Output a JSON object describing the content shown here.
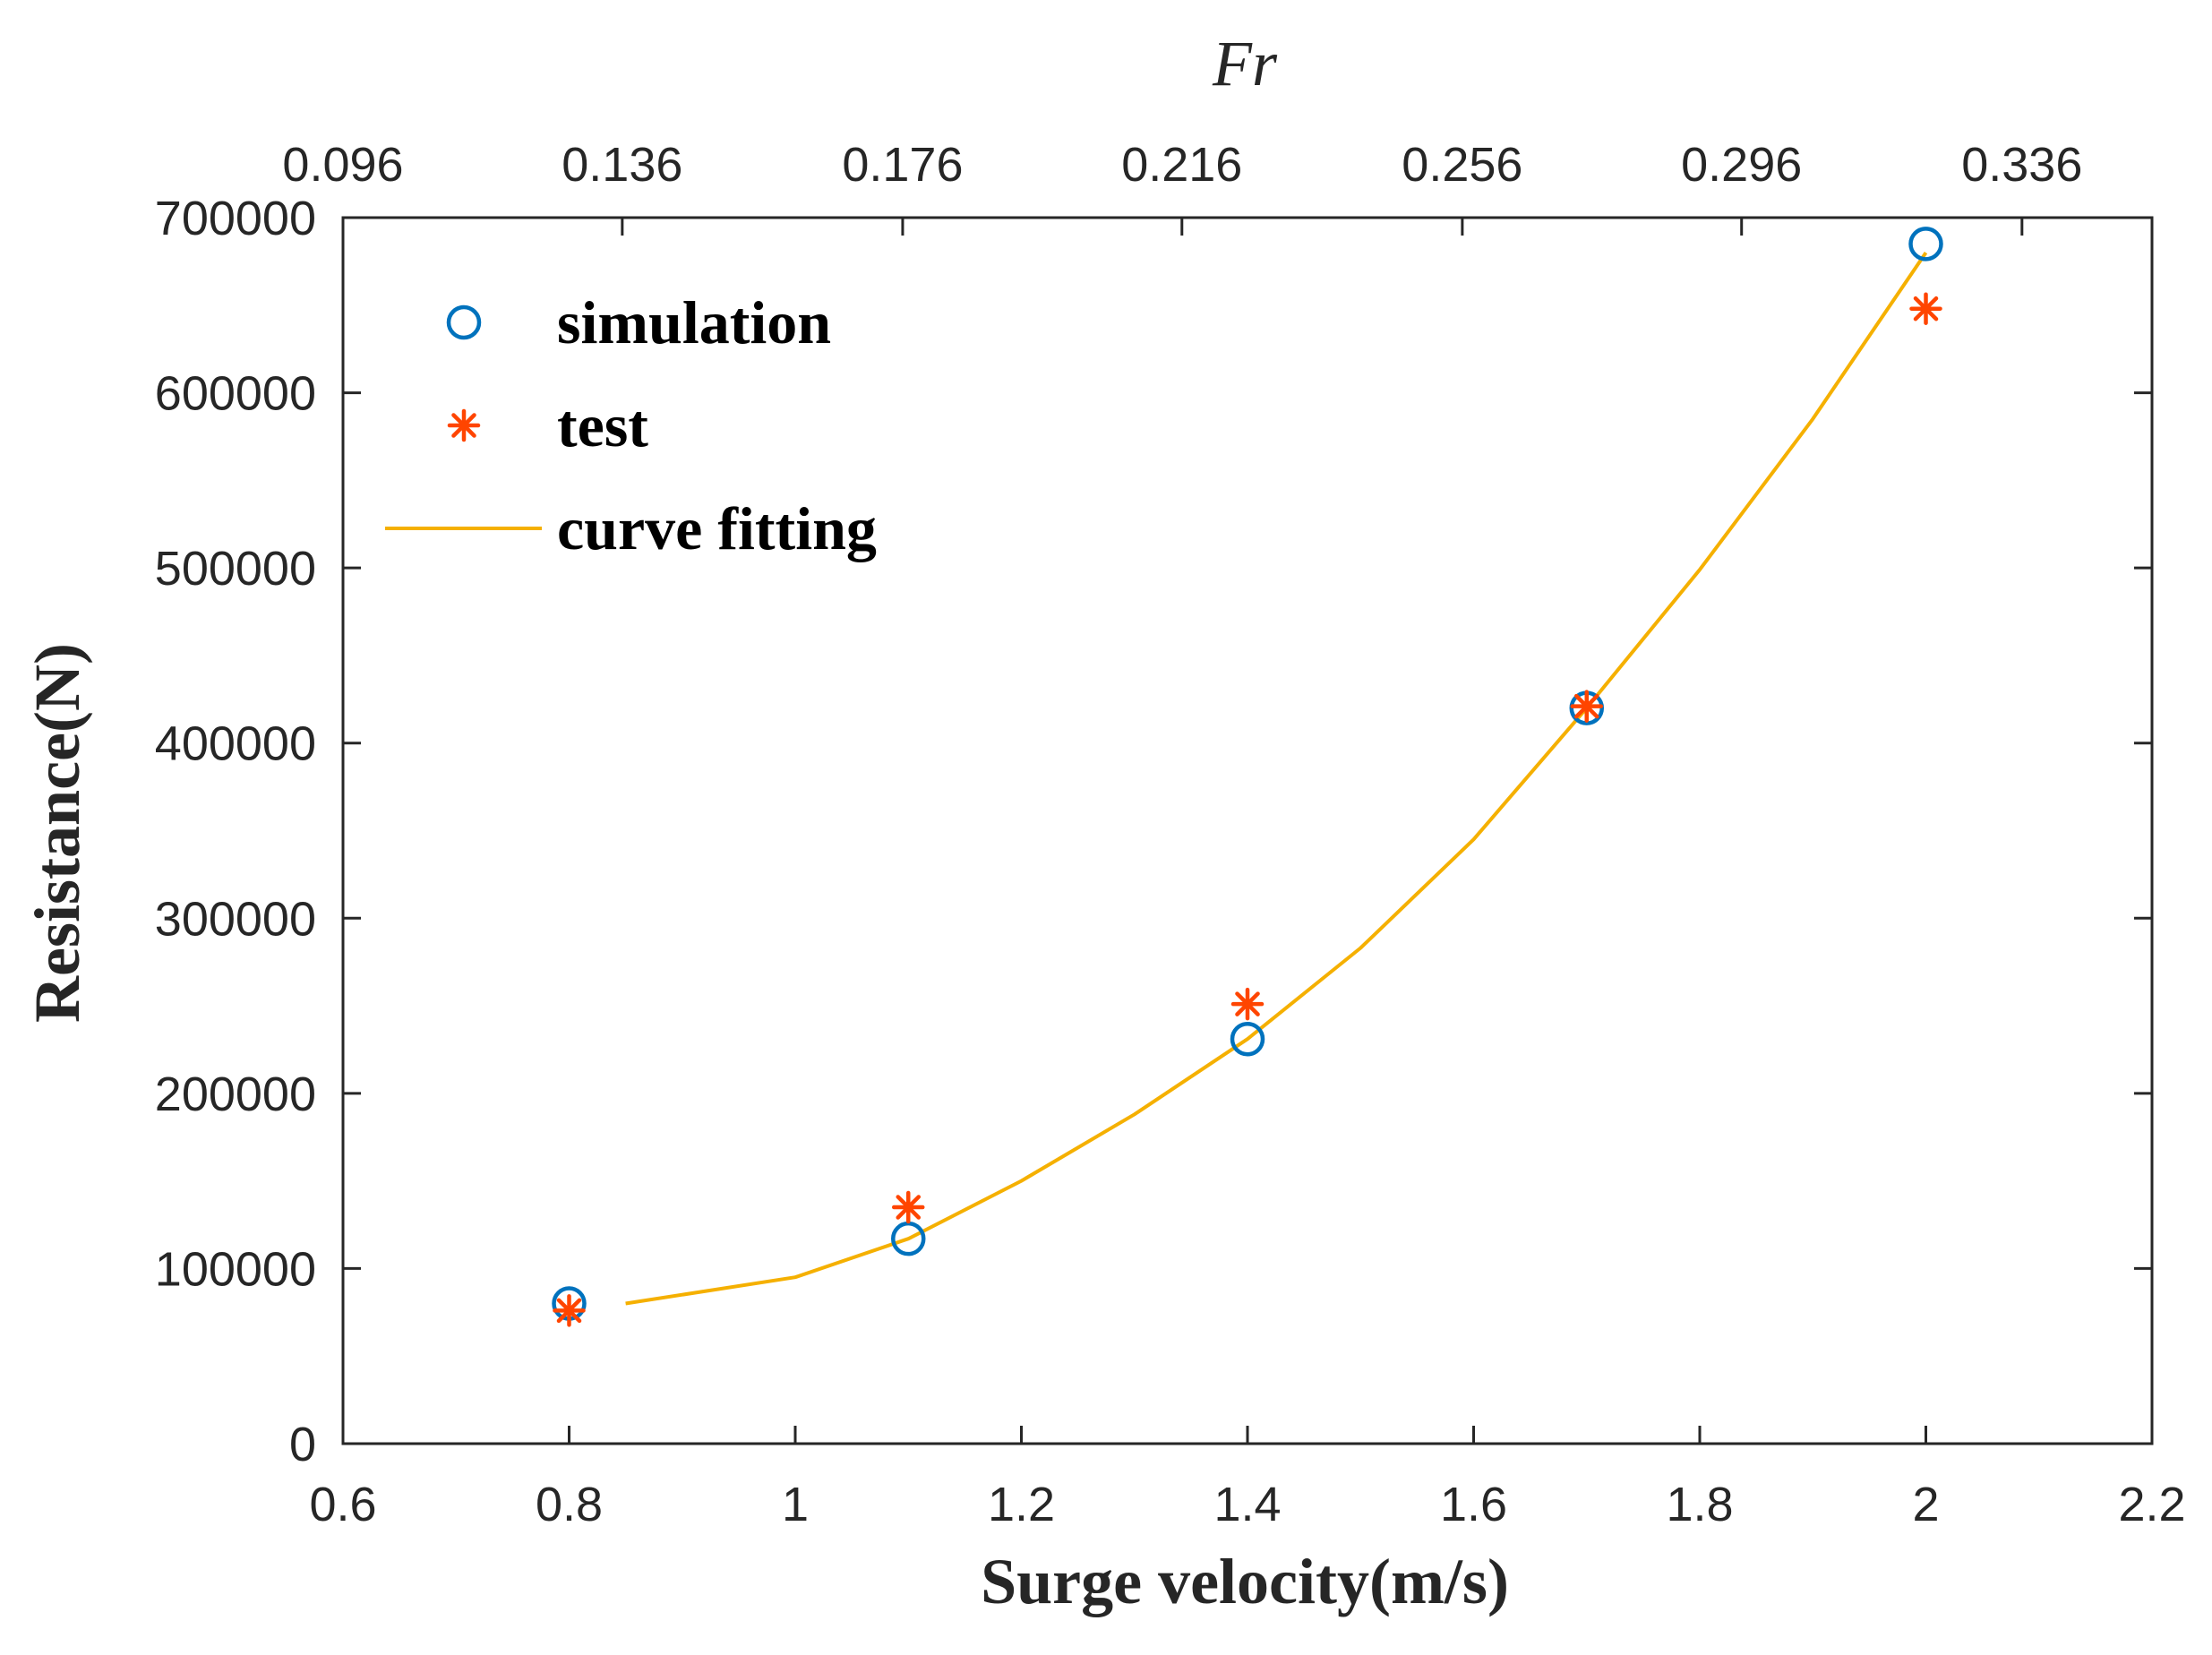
{
  "chart_data": {
    "type": "scatter",
    "xlabel": "Surge velocity(m/s)",
    "ylabel": "Resistance(N)",
    "top_xlabel": "Fr",
    "xlim": [
      0.6,
      2.2
    ],
    "ylim": [
      0,
      700000
    ],
    "x_ticks": [
      "0.6",
      "0.8",
      "1",
      "1.2",
      "1.4",
      "1.6",
      "1.8",
      "2",
      "2.2"
    ],
    "x_tick_values": [
      0.6,
      0.8,
      1.0,
      1.2,
      1.4,
      1.6,
      1.8,
      2.0,
      2.2
    ],
    "y_ticks": [
      "0",
      "100000",
      "200000",
      "300000",
      "400000",
      "500000",
      "600000",
      "700000"
    ],
    "y_tick_values": [
      0,
      100000,
      200000,
      300000,
      400000,
      500000,
      600000,
      700000
    ],
    "top_x_ticks": [
      "0.096",
      "0.136",
      "0.176",
      "0.216",
      "0.256",
      "0.296",
      "0.336"
    ],
    "top_x_tick_values": [
      0.6,
      0.847,
      1.095,
      1.342,
      1.59,
      1.837,
      2.085
    ],
    "grid": false,
    "legend_position": "top-left",
    "series": [
      {
        "name": "simulation",
        "marker": "circle",
        "color": "#0072BD",
        "x": [
          0.8,
          1.1,
          1.4,
          1.7,
          2.0
        ],
        "y": [
          80000,
          117000,
          231000,
          420000,
          685000
        ]
      },
      {
        "name": "test",
        "marker": "asterisk",
        "color": "#FF4500",
        "x": [
          0.8,
          1.1,
          1.4,
          1.7,
          2.0
        ],
        "y": [
          76000,
          135000,
          251000,
          421000,
          648000
        ]
      },
      {
        "name": "curve fitting",
        "marker": "line",
        "color": "#F5B000",
        "x": [
          0.85,
          1.0,
          1.1,
          1.2,
          1.3,
          1.4,
          1.5,
          1.6,
          1.7,
          1.8,
          1.9,
          2.0
        ],
        "y": [
          80000,
          95000,
          117000,
          150000,
          188000,
          231000,
          283000,
          345000,
          420000,
          499000,
          585000,
          680000
        ]
      }
    ]
  }
}
